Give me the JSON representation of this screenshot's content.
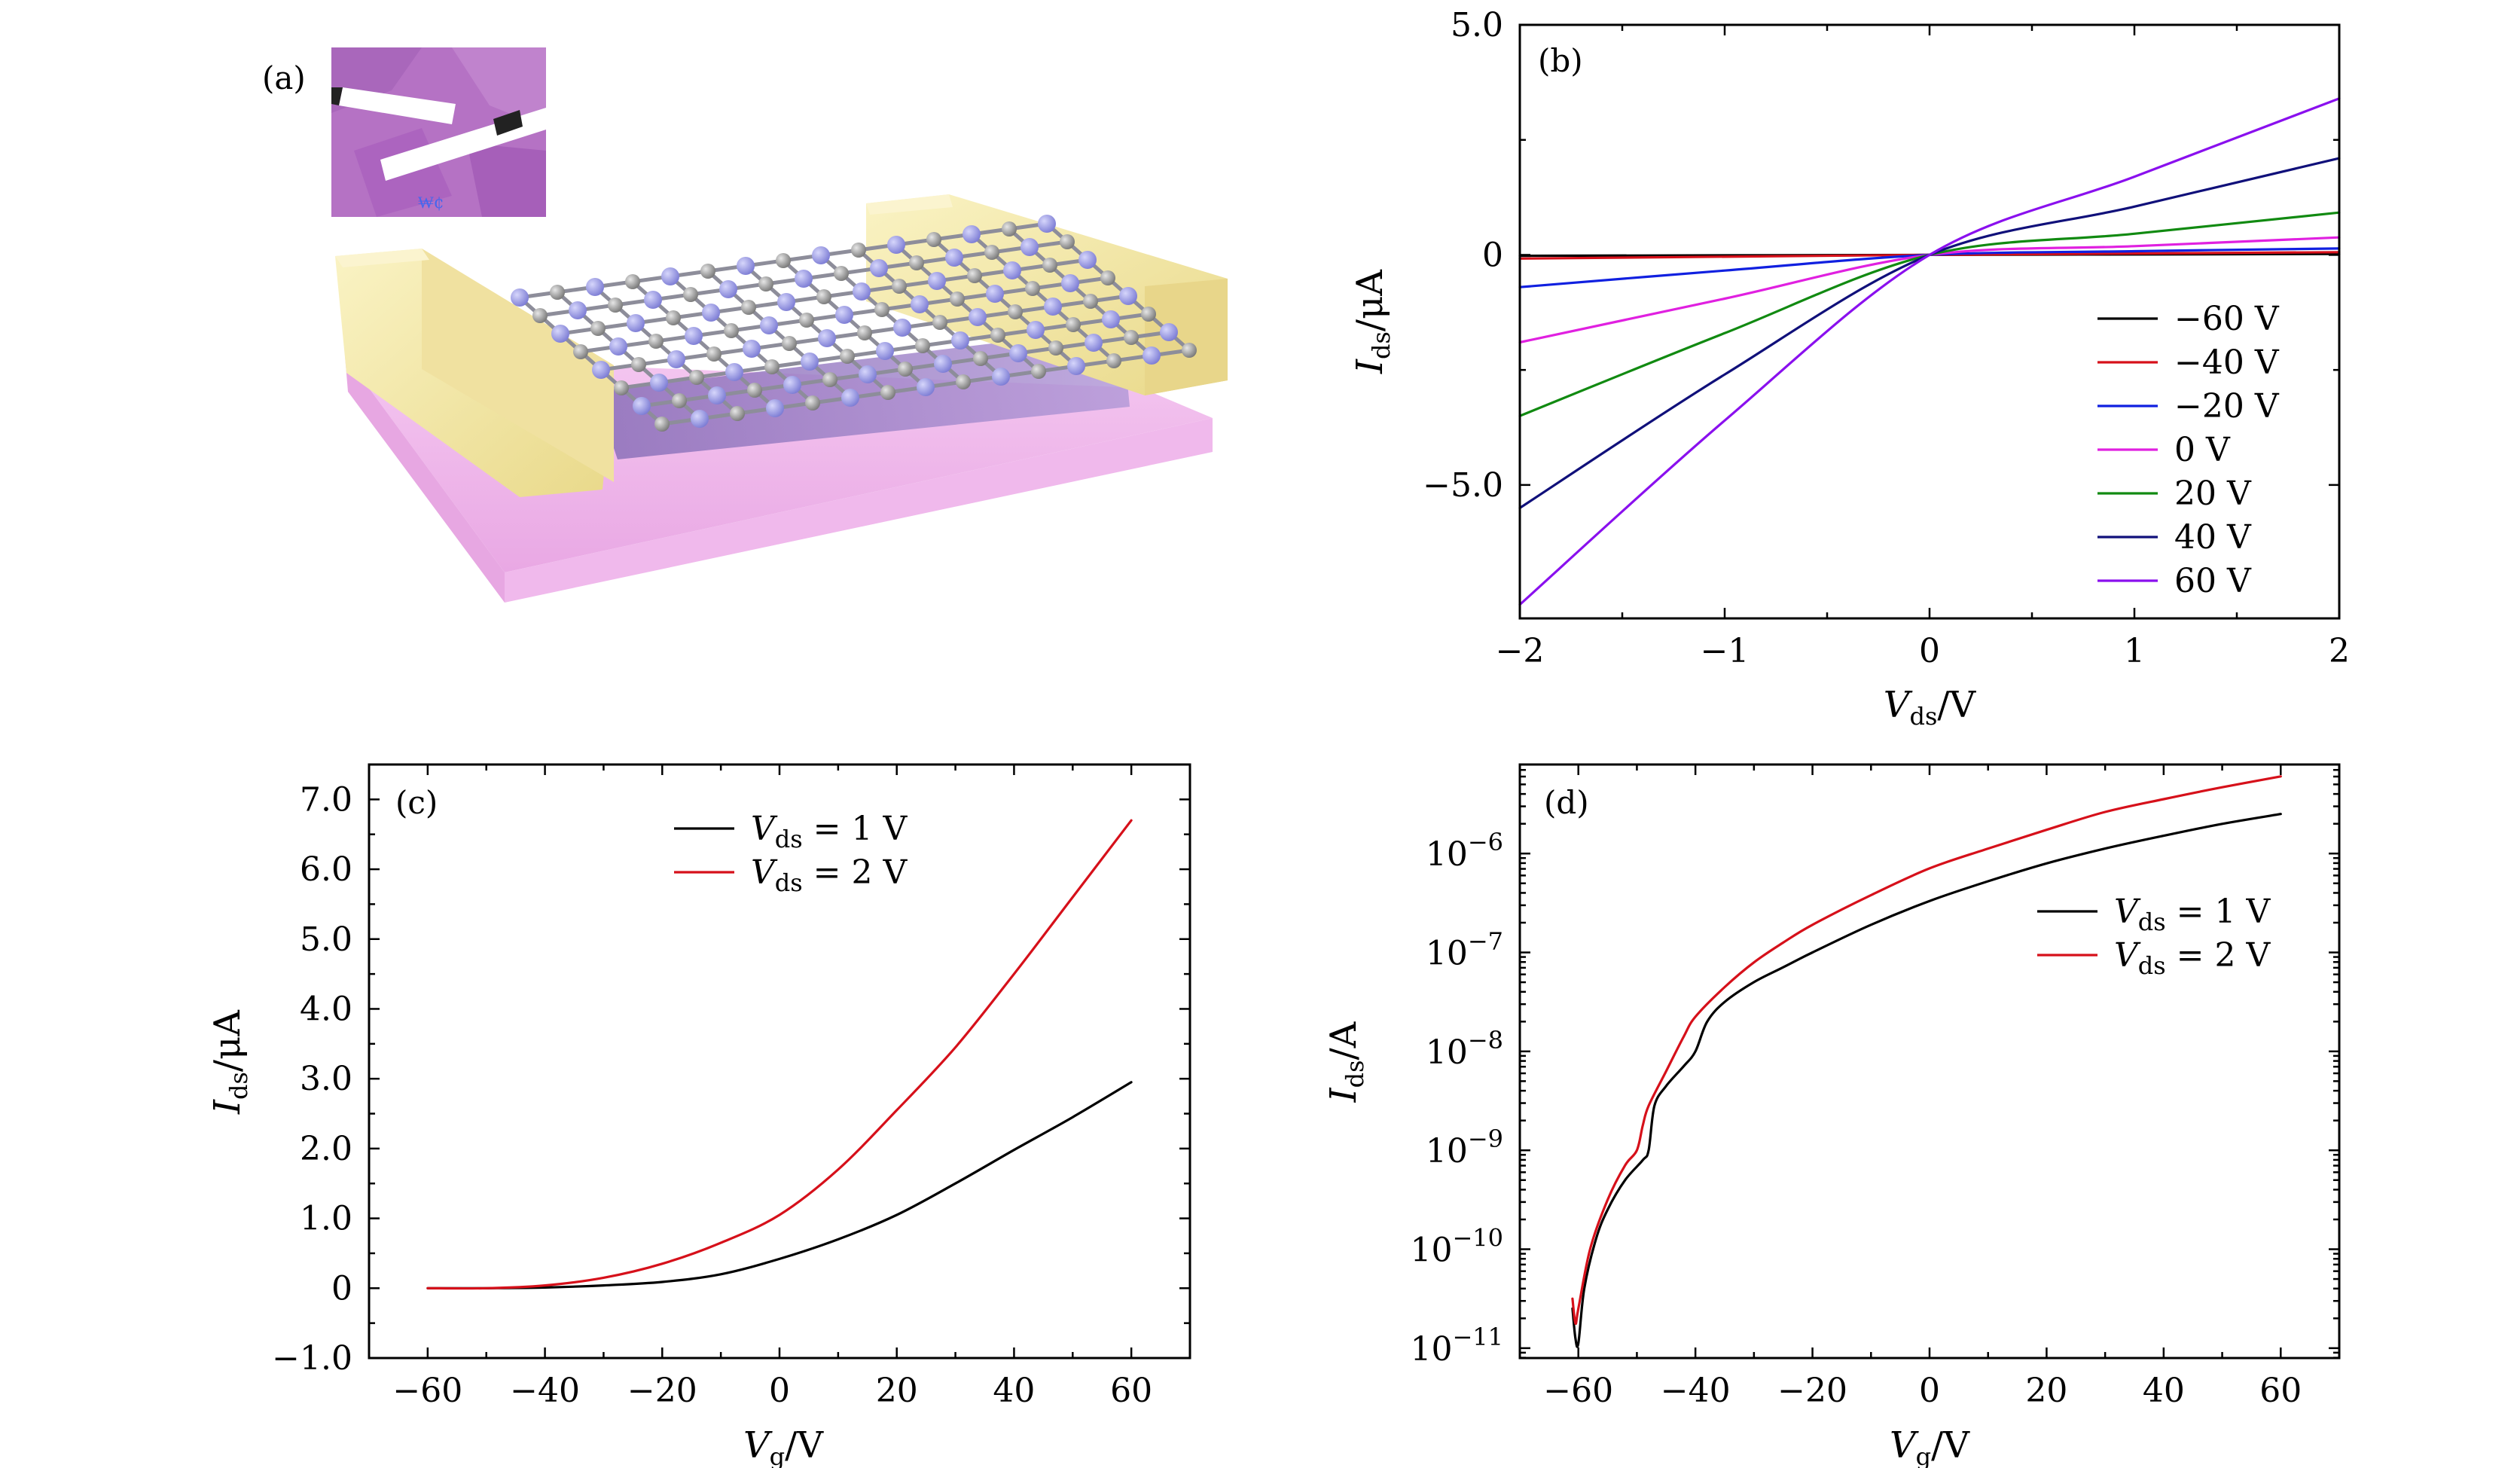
{
  "colors": {
    "black": "#000000",
    "red": "#d6101a",
    "blue": "#1020e0",
    "magenta": "#e020e0",
    "green": "#118a11",
    "navy": "#10107a",
    "violet": "#8a10ee",
    "gold": "#f3e6a0",
    "pink": "#f2b3ec",
    "lattice": "#9a9ad8"
  },
  "panel_a": {
    "label": "(a)",
    "inset_text": "₩¢"
  },
  "chart_data": [
    {
      "id": "b",
      "panel_label": "(b)",
      "type": "line",
      "xlabel_main": "V",
      "xlabel_sub": "ds",
      "xlabel_unit": "/V",
      "ylabel_main": "I",
      "ylabel_sub": "ds",
      "ylabel_unit": "/μA",
      "xlim": [
        -2,
        2
      ],
      "ylim": [
        -7.9,
        5.0
      ],
      "xticks": [
        -2,
        -1,
        0,
        1,
        2
      ],
      "xtick_labels": [
        "−2",
        "−1",
        "0",
        "1",
        "2"
      ],
      "yticks": [
        5.0,
        0,
        -5.0
      ],
      "ytick_labels": [
        "5.0",
        "0",
        "−5.0"
      ],
      "legend_position": "bottom-right",
      "series": [
        {
          "name": "−60 V",
          "color": "#000000",
          "x": [
            -2,
            0,
            2
          ],
          "y": [
            -0.02,
            0,
            0.02
          ]
        },
        {
          "name": "−40 V",
          "color": "#d6101a",
          "x": [
            -2,
            0,
            2
          ],
          "y": [
            -0.08,
            0,
            0.06
          ]
        },
        {
          "name": "−20 V",
          "color": "#1020e0",
          "x": [
            -2,
            -1,
            0,
            1,
            2
          ],
          "y": [
            -0.7,
            -0.34,
            0,
            0.08,
            0.14
          ]
        },
        {
          "name": "0 V",
          "color": "#e020e0",
          "x": [
            -2,
            -1,
            0,
            1,
            2
          ],
          "y": [
            -1.9,
            -0.95,
            0,
            0.19,
            0.38
          ]
        },
        {
          "name": "20 V",
          "color": "#118a11",
          "x": [
            -2,
            -1,
            0,
            1,
            2
          ],
          "y": [
            -3.5,
            -1.7,
            0,
            0.46,
            0.92
          ]
        },
        {
          "name": "40 V",
          "color": "#10107a",
          "x": [
            -2,
            -1,
            0,
            1,
            2
          ],
          "y": [
            -5.5,
            -2.6,
            0,
            1.05,
            2.1
          ]
        },
        {
          "name": "60 V",
          "color": "#8a10ee",
          "x": [
            -2,
            -1,
            0,
            1,
            2
          ],
          "y": [
            -7.6,
            -3.6,
            0,
            1.7,
            3.4
          ]
        }
      ]
    },
    {
      "id": "c",
      "panel_label": "(c)",
      "type": "line",
      "xlabel_main": "V",
      "xlabel_sub": "g",
      "xlabel_unit": "/V",
      "ylabel_main": "I",
      "ylabel_sub": "ds",
      "ylabel_unit": "/μA",
      "xlim": [
        -70,
        70
      ],
      "ylim": [
        -1.0,
        7.5
      ],
      "xticks": [
        -60,
        -40,
        -20,
        0,
        20,
        40,
        60
      ],
      "xtick_labels": [
        "−60",
        "−40",
        "−20",
        "0",
        "20",
        "40",
        "60"
      ],
      "yticks": [
        -1.0,
        0,
        1.0,
        2.0,
        3.0,
        4.0,
        5.0,
        6.0,
        7.0
      ],
      "ytick_labels": [
        "−1.0",
        "0",
        "1.0",
        "2.0",
        "3.0",
        "4.0",
        "5.0",
        "6.0",
        "7.0"
      ],
      "legend_position": "top-center",
      "series": [
        {
          "name_main": "V",
          "name_sub": "ds",
          "name_rest": " = 1 V",
          "color": "#000000",
          "x": [
            -60,
            -50,
            -40,
            -30,
            -20,
            -10,
            0,
            10,
            20,
            30,
            40,
            50,
            60
          ],
          "y": [
            0,
            0,
            0.01,
            0.04,
            0.09,
            0.2,
            0.42,
            0.7,
            1.05,
            1.5,
            1.98,
            2.45,
            2.95
          ]
        },
        {
          "name_main": "V",
          "name_sub": "ds",
          "name_rest": " = 2 V",
          "color": "#d6101a",
          "x": [
            -60,
            -50,
            -40,
            -30,
            -20,
            -10,
            0,
            10,
            20,
            30,
            40,
            50,
            60
          ],
          "y": [
            0,
            0,
            0.04,
            0.15,
            0.35,
            0.65,
            1.05,
            1.7,
            2.55,
            3.45,
            4.5,
            5.6,
            6.7
          ]
        }
      ]
    },
    {
      "id": "d",
      "panel_label": "(d)",
      "type": "line",
      "yscale": "log",
      "xlabel_main": "V",
      "xlabel_sub": "g",
      "xlabel_unit": "/V",
      "ylabel_main": "I",
      "ylabel_sub": "ds",
      "ylabel_unit": "/A",
      "xlim": [
        -70,
        70
      ],
      "ylim_log10": [
        -11.1,
        -5.1
      ],
      "xticks": [
        -60,
        -40,
        -20,
        0,
        20,
        40,
        60
      ],
      "xtick_labels": [
        "−60",
        "−40",
        "−20",
        "0",
        "20",
        "40",
        "60"
      ],
      "yticks_log10": [
        -11,
        -10,
        -9,
        -8,
        -7,
        -6
      ],
      "ytick_base": "10",
      "ytick_exponents": [
        "−11",
        "−10",
        "−9",
        "−8",
        "−7",
        "−6"
      ],
      "legend_position": "upper-right",
      "series": [
        {
          "name_main": "V",
          "name_sub": "ds",
          "name_rest": " = 1 V",
          "color": "#000000",
          "x": [
            -61,
            -60.5,
            -60,
            -59,
            -57,
            -55,
            -52,
            -49,
            -48,
            -47,
            -45,
            -42,
            -40,
            -38,
            -35,
            -30,
            -25,
            -20,
            -10,
            0,
            10,
            20,
            30,
            40,
            50,
            60
          ],
          "log10y": [
            -10.6,
            -10.9,
            -10.95,
            -10.4,
            -9.9,
            -9.6,
            -9.3,
            -9.1,
            -9.0,
            -8.55,
            -8.35,
            -8.15,
            -8.0,
            -7.7,
            -7.5,
            -7.3,
            -7.15,
            -7.0,
            -6.72,
            -6.48,
            -6.28,
            -6.1,
            -5.95,
            -5.82,
            -5.7,
            -5.6
          ]
        },
        {
          "name_main": "V",
          "name_sub": "ds",
          "name_rest": " = 2 V",
          "color": "#d6101a",
          "x": [
            -61,
            -60.5,
            -60,
            -58,
            -55,
            -52,
            -50,
            -49,
            -48,
            -45,
            -42,
            -40,
            -35,
            -30,
            -25,
            -20,
            -10,
            0,
            10,
            20,
            30,
            40,
            50,
            60
          ],
          "log10y": [
            -10.5,
            -10.75,
            -10.6,
            -10.0,
            -9.5,
            -9.15,
            -9.0,
            -8.75,
            -8.55,
            -8.2,
            -7.85,
            -7.65,
            -7.35,
            -7.1,
            -6.9,
            -6.72,
            -6.42,
            -6.15,
            -5.95,
            -5.76,
            -5.58,
            -5.45,
            -5.33,
            -5.22
          ]
        }
      ]
    }
  ]
}
